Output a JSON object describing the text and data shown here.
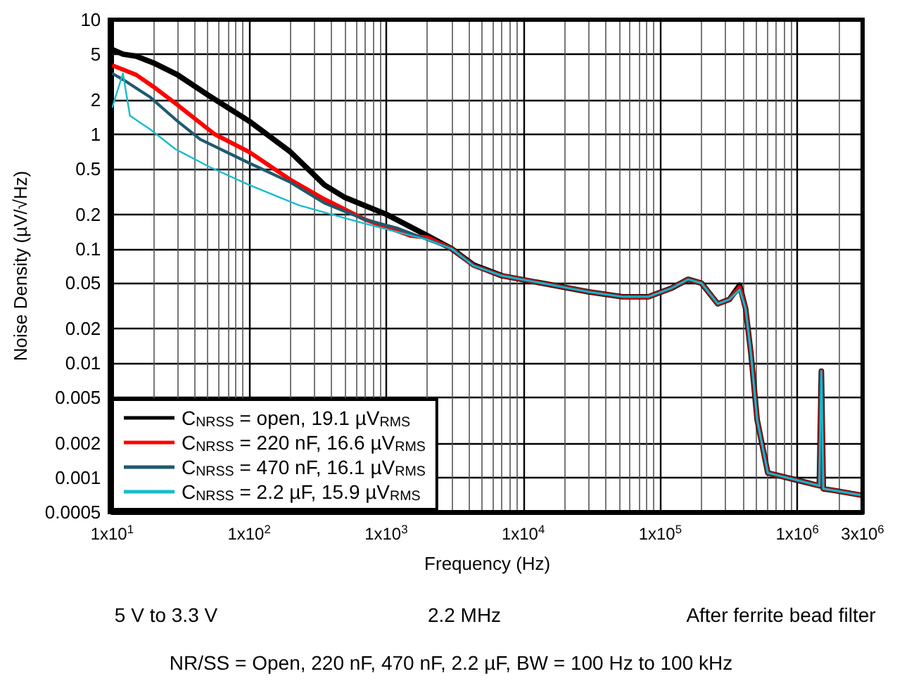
{
  "chart_data": {
    "type": "line",
    "xlabel": "Frequency (Hz)",
    "ylabel": "Noise Density (µV/√Hz)",
    "xlim": [
      10,
      3000000
    ],
    "ylim": [
      0.0005,
      10
    ],
    "xticks": [
      {
        "value": 10,
        "label": "1x10$^{1}$"
      },
      {
        "value": 100,
        "label": "1x10$^{2}$"
      },
      {
        "value": 1000,
        "label": "1x10$^{3}$"
      },
      {
        "value": 10000,
        "label": "1x10$^{4}$"
      },
      {
        "value": 100000,
        "label": "1x10$^{5}$"
      },
      {
        "value": 1000000,
        "label": "1x10$^{6}$"
      },
      {
        "value": 3000000,
        "label": "3x10$^{6}$"
      }
    ],
    "yticks": [
      0.0005,
      0.001,
      0.002,
      0.005,
      0.01,
      0.02,
      0.05,
      0.1,
      0.2,
      0.5,
      1,
      2,
      5,
      10
    ],
    "log": "xy",
    "grid": true,
    "legend": "bottom left",
    "annotations": [
      "5 V to 3.3 V",
      "2.2 MHz",
      "After ferrite bead filter",
      "NR/SS = Open, 220 nF, 470 nF, 2.2 µF, BW = 100 Hz to 100 kHz"
    ],
    "series": [
      {
        "name": "C$_{NRSS}$ = open, 19.1 µV$_{RMS}$",
        "color": "#000000",
        "x": [
          10,
          12,
          15,
          20,
          30,
          50,
          100,
          200,
          355,
          500,
          1000,
          2000,
          3000,
          4350,
          7000,
          15000,
          30000,
          53000,
          82000,
          120000,
          160000,
          200000,
          263000,
          320000,
          380000,
          420000,
          460000,
          510000,
          610000,
          1000000,
          1450000,
          1500000,
          1550000,
          1900000,
          3000000
        ],
        "values": [
          5.5,
          5,
          4.8,
          4.2,
          3.3,
          2.2,
          1.3,
          0.7,
          0.36,
          0.28,
          0.2,
          0.13,
          0.1,
          0.072,
          0.058,
          0.049,
          0.042,
          0.038,
          0.038,
          0.045,
          0.054,
          0.05,
          0.033,
          0.036,
          0.048,
          0.03,
          0.012,
          0.0032,
          0.0011,
          0.00095,
          0.00085,
          0.0085,
          0.0008,
          0.00077,
          0.0007
        ]
      },
      {
        "name": "C$_{NRSS}$ = 220 nF, 16.6 µV$_{RMS}$",
        "color": "#ff0000",
        "x": [
          10,
          15,
          20,
          30,
          56,
          100,
          200,
          355,
          700,
          1500,
          2000,
          3000,
          4350,
          7000,
          15000,
          30000,
          53000,
          82000,
          120000,
          160000,
          200000,
          263000,
          320000,
          380000,
          420000,
          460000,
          510000,
          610000,
          1000000,
          1450000,
          1500000,
          1550000,
          1900000,
          3000000
        ],
        "values": [
          4,
          3.3,
          2.6,
          1.8,
          1,
          0.7,
          0.4,
          0.27,
          0.18,
          0.13,
          0.125,
          0.1,
          0.071,
          0.058,
          0.049,
          0.042,
          0.038,
          0.038,
          0.045,
          0.054,
          0.05,
          0.033,
          0.036,
          0.046,
          0.03,
          0.012,
          0.0032,
          0.0011,
          0.00095,
          0.00085,
          0.0085,
          0.0008,
          0.00077,
          0.0007
        ]
      },
      {
        "name": "C$_{NRSS}$ = 470 nF, 16.1 µV$_{RMS}$",
        "color": "#1f5a6e",
        "x": [
          10,
          12,
          19,
          30,
          44,
          100,
          200,
          355,
          700,
          1230,
          2000,
          3000,
          4350,
          7000,
          15000,
          30000,
          53000,
          82000,
          120000,
          160000,
          200000,
          263000,
          320000,
          380000,
          420000,
          460000,
          510000,
          610000,
          1000000,
          1450000,
          1500000,
          1550000,
          1900000,
          3000000
        ],
        "values": [
          3.4,
          3,
          2.1,
          1.3,
          0.9,
          0.56,
          0.38,
          0.25,
          0.18,
          0.15,
          0.12,
          0.1,
          0.071,
          0.058,
          0.049,
          0.042,
          0.038,
          0.038,
          0.045,
          0.054,
          0.05,
          0.033,
          0.036,
          0.044,
          0.03,
          0.012,
          0.0032,
          0.0011,
          0.00095,
          0.00085,
          0.0085,
          0.0008,
          0.00077,
          0.0007
        ]
      },
      {
        "name": "C$_{NRSS}$ = 2.2 µF, 15.9 µV$_{RMS}$",
        "color": "#17bccc",
        "x": [
          10,
          12,
          13.5,
          19,
          29,
          51,
          100,
          230,
          540,
          1200,
          2000,
          3000,
          4350,
          7000,
          15000,
          30000,
          53000,
          82000,
          120000,
          160000,
          200000,
          263000,
          320000,
          380000,
          420000,
          460000,
          510000,
          610000,
          1000000,
          1450000,
          1500000,
          1550000,
          1900000,
          3000000
        ],
        "values": [
          1.7,
          3.4,
          1.45,
          1.1,
          0.74,
          0.52,
          0.36,
          0.24,
          0.18,
          0.14,
          0.12,
          0.1,
          0.071,
          0.058,
          0.049,
          0.042,
          0.038,
          0.038,
          0.045,
          0.054,
          0.05,
          0.033,
          0.036,
          0.044,
          0.03,
          0.012,
          0.0032,
          0.0011,
          0.00095,
          0.00085,
          0.0085,
          0.0008,
          0.00077,
          0.0007
        ]
      }
    ]
  }
}
